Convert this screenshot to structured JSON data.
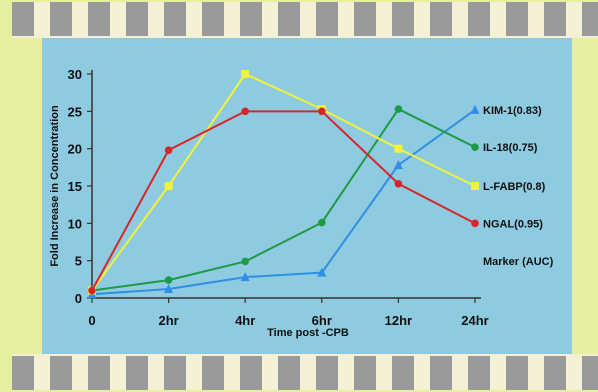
{
  "chart_data": {
    "type": "line",
    "title": "",
    "xlabel": "Time post -CPB",
    "ylabel": "Fold Increase in Concentration",
    "categories": [
      "0",
      "2hr",
      "4hr",
      "6hr",
      "12hr",
      "24hr"
    ],
    "ylim": [
      0,
      30
    ],
    "yticks": [
      0,
      5,
      10,
      15,
      20,
      25,
      30
    ],
    "grid": false,
    "legend_title": "Marker (AUC)",
    "legend_placement": "right",
    "series": [
      {
        "name": "KIM-1(0.83)",
        "color": "#2f8fe6",
        "marker": "triangle",
        "values": [
          0.5,
          1.2,
          2.8,
          3.4,
          17.8,
          25.2
        ]
      },
      {
        "name": "IL-18(0.75)",
        "color": "#1f9a44",
        "marker": "circle",
        "values": [
          1.0,
          2.4,
          4.9,
          10.1,
          25.3,
          20.2
        ]
      },
      {
        "name": "L-FABP(0.8)",
        "color": "#f2f23a",
        "marker": "square",
        "values": [
          1.0,
          15.0,
          30.0,
          25.3,
          20.0,
          15.0
        ]
      },
      {
        "name": "NGAL(0.95)",
        "color": "#d6262a",
        "marker": "circle",
        "values": [
          1.0,
          19.8,
          25.0,
          25.0,
          15.3,
          10.0
        ]
      }
    ]
  }
}
